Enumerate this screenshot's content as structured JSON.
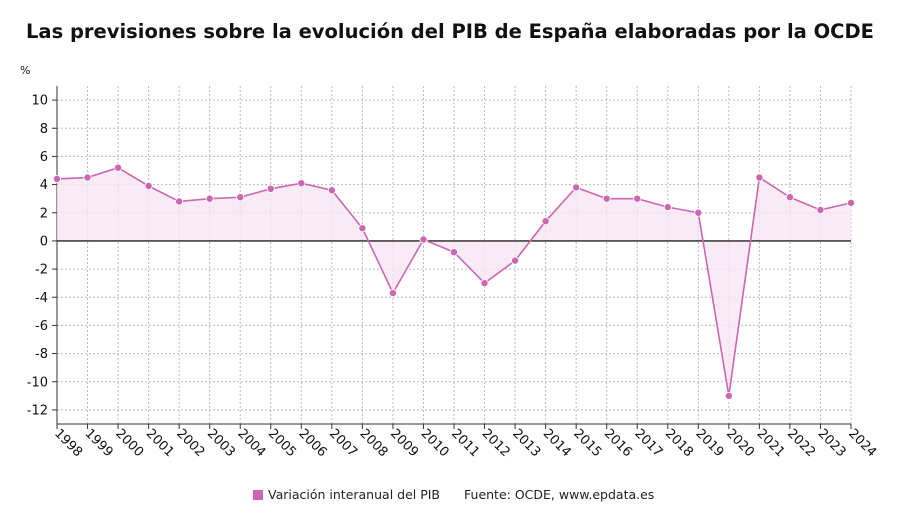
{
  "title": "Las previsiones sobre la evolución del PIB de España elaboradas por la OCDE",
  "unit_label": "%",
  "legend": {
    "series_label": "Variación interanual del PIB",
    "source": "Fuente: OCDE, www.epdata.es"
  },
  "colors": {
    "series": "#cc66b3",
    "area": "#f7e6f2",
    "zero_line": "#222222",
    "grid": "#bbbbbb"
  },
  "chart_data": {
    "type": "area",
    "title": "Las previsiones sobre la evolución del PIB de España elaboradas por la OCDE",
    "xlabel": "",
    "ylabel": "%",
    "ylim": [
      -13,
      11
    ],
    "yticks": [
      10,
      8,
      6,
      4,
      2,
      0,
      -2,
      -4,
      -6,
      -8,
      -10,
      -12
    ],
    "grid": true,
    "legend_position": "bottom",
    "categories": [
      "1998",
      "1999",
      "2000",
      "2001",
      "2002",
      "2003",
      "2004",
      "2005",
      "2006",
      "2007",
      "2008",
      "2009",
      "2010",
      "2011",
      "2012",
      "2013",
      "2014",
      "2015",
      "2016",
      "2017",
      "2018",
      "2019",
      "2020",
      "2021",
      "2022",
      "2023",
      "2024"
    ],
    "series": [
      {
        "name": "Variación interanual del PIB",
        "values": [
          4.4,
          4.5,
          5.2,
          3.9,
          2.8,
          3.0,
          3.1,
          3.7,
          4.1,
          3.6,
          0.9,
          -3.7,
          0.1,
          -0.8,
          -3.0,
          -1.4,
          1.4,
          3.8,
          3.0,
          3.0,
          2.4,
          2.0,
          -11.0,
          4.5,
          3.1,
          2.2,
          2.7
        ]
      }
    ]
  }
}
